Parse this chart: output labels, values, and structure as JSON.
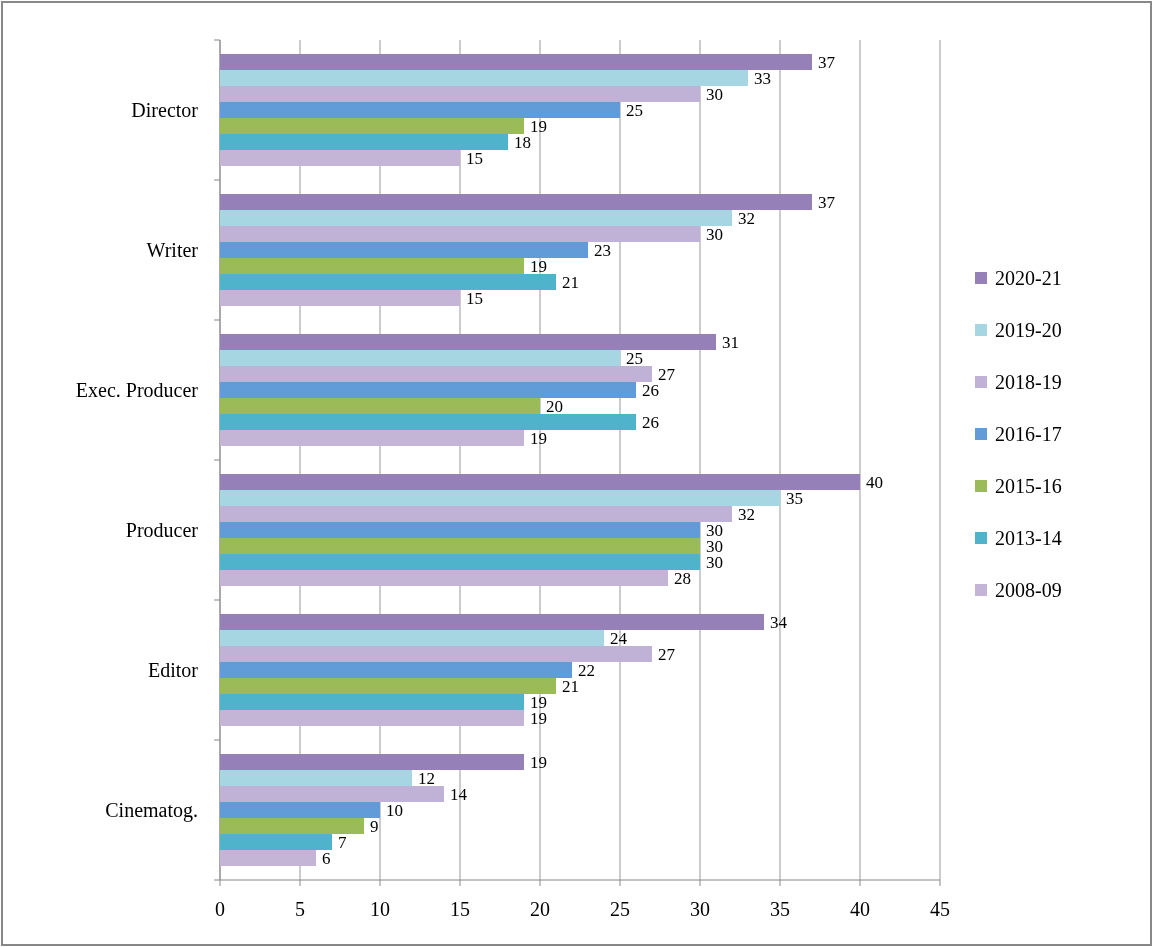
{
  "chart_data": {
    "type": "bar",
    "orientation": "horizontal",
    "categories": [
      "Director",
      "Writer",
      "Exec. Producer",
      "Producer",
      "Editor",
      "Cinematog."
    ],
    "series": [
      {
        "name": "2020-21",
        "color": "#9581b8",
        "values": [
          37,
          37,
          31,
          40,
          34,
          19
        ]
      },
      {
        "name": "2019-20",
        "color": "#a6d6e2",
        "values": [
          33,
          32,
          25,
          35,
          24,
          12
        ]
      },
      {
        "name": "2018-19",
        "color": "#c0b2d6",
        "values": [
          30,
          30,
          27,
          32,
          27,
          14
        ]
      },
      {
        "name": "2016-17",
        "color": "#619cd9",
        "values": [
          25,
          23,
          26,
          30,
          22,
          10
        ]
      },
      {
        "name": "2015-16",
        "color": "#9bbb59",
        "values": [
          19,
          19,
          20,
          30,
          21,
          9
        ]
      },
      {
        "name": "2013-14",
        "color": "#4fb3cc",
        "values": [
          18,
          21,
          26,
          30,
          19,
          7
        ]
      },
      {
        "name": "2008-09",
        "color": "#c4b4d6",
        "values": [
          15,
          15,
          19,
          28,
          19,
          6
        ]
      }
    ],
    "xlim": [
      0,
      45
    ],
    "xticks": [
      0,
      5,
      10,
      15,
      20,
      25,
      30,
      35,
      40,
      45
    ],
    "grid": "x",
    "legend": "right",
    "data_labels": true
  }
}
